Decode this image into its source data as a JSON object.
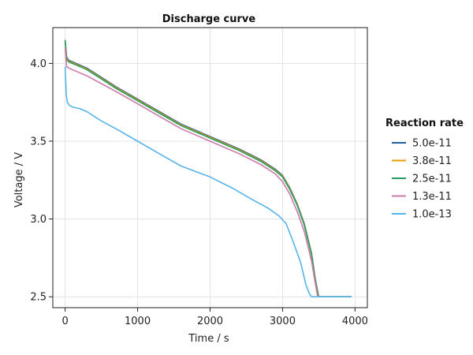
{
  "chart_data": {
    "type": "line",
    "title": "Discharge curve",
    "xlabel": "Time / s",
    "ylabel": "Voltage / V",
    "xlim": [
      -170,
      4170
    ],
    "ylim": [
      2.43,
      4.23
    ],
    "xticks": [
      0,
      1000,
      2000,
      3000,
      4000
    ],
    "yticks": [
      2.5,
      3.0,
      3.5,
      4.0
    ],
    "ytick_labels": [
      "2.5",
      "3.0",
      "3.5",
      "4.0"
    ],
    "grid": true,
    "legend": {
      "title": "Reaction rate",
      "position": "right"
    },
    "series": [
      {
        "name": "5.0e-11",
        "color": "#1f5f9e",
        "x": [
          0,
          20,
          50,
          100,
          200,
          300,
          500,
          700,
          1000,
          1300,
          1600,
          2000,
          2400,
          2700,
          2900,
          3000,
          3100,
          3200,
          3300,
          3400,
          3450,
          3490,
          3500,
          3700,
          3950
        ],
        "y": [
          4.15,
          4.04,
          4.02,
          4.01,
          3.99,
          3.97,
          3.91,
          3.85,
          3.77,
          3.69,
          3.61,
          3.53,
          3.45,
          3.38,
          3.32,
          3.28,
          3.2,
          3.1,
          2.97,
          2.78,
          2.62,
          2.52,
          2.5,
          2.5,
          2.5
        ]
      },
      {
        "name": "3.8e-11",
        "color": "#e69f00",
        "x": [
          0,
          20,
          50,
          100,
          200,
          300,
          500,
          700,
          1000,
          1300,
          1600,
          2000,
          2400,
          2700,
          2900,
          3000,
          3100,
          3200,
          3300,
          3400,
          3450,
          3490,
          3500,
          3700,
          3950
        ],
        "y": [
          4.15,
          4.03,
          4.015,
          4.005,
          3.985,
          3.965,
          3.905,
          3.845,
          3.765,
          3.685,
          3.605,
          3.525,
          3.445,
          3.375,
          3.315,
          3.275,
          3.195,
          3.095,
          2.965,
          2.775,
          2.615,
          2.515,
          2.5,
          2.5,
          2.5
        ]
      },
      {
        "name": "2.5e-11",
        "color": "#2a9d63",
        "x": [
          0,
          20,
          50,
          100,
          200,
          300,
          500,
          700,
          1000,
          1300,
          1600,
          2000,
          2400,
          2700,
          2900,
          3000,
          3100,
          3200,
          3300,
          3400,
          3450,
          3490,
          3500,
          3700,
          3950
        ],
        "y": [
          4.15,
          4.02,
          4.01,
          4.0,
          3.98,
          3.96,
          3.9,
          3.84,
          3.76,
          3.68,
          3.6,
          3.52,
          3.44,
          3.37,
          3.31,
          3.27,
          3.19,
          3.09,
          2.96,
          2.77,
          2.61,
          2.51,
          2.5,
          2.5,
          2.5
        ]
      },
      {
        "name": "1.3e-11",
        "color": "#cc79a7",
        "x": [
          0,
          20,
          50,
          100,
          200,
          300,
          500,
          700,
          1000,
          1300,
          1600,
          2000,
          2400,
          2700,
          2900,
          3000,
          3100,
          3200,
          3300,
          3400,
          3450,
          3480,
          3500,
          3700,
          3950
        ],
        "y": [
          4.1,
          3.98,
          3.97,
          3.96,
          3.94,
          3.92,
          3.87,
          3.82,
          3.74,
          3.66,
          3.58,
          3.5,
          3.42,
          3.35,
          3.29,
          3.24,
          3.16,
          3.05,
          2.92,
          2.73,
          2.59,
          2.51,
          2.5,
          2.5,
          2.5
        ]
      },
      {
        "name": "1.0e-13",
        "color": "#56b4e9",
        "x": [
          0,
          15,
          30,
          60,
          100,
          200,
          300,
          500,
          700,
          1000,
          1300,
          1600,
          2000,
          2300,
          2600,
          2800,
          2950,
          3050,
          3150,
          3250,
          3320,
          3370,
          3400,
          3500,
          3700,
          3950
        ],
        "y": [
          3.98,
          3.8,
          3.75,
          3.73,
          3.72,
          3.71,
          3.69,
          3.63,
          3.58,
          3.5,
          3.42,
          3.34,
          3.27,
          3.2,
          3.12,
          3.07,
          3.02,
          2.97,
          2.85,
          2.72,
          2.58,
          2.52,
          2.5,
          2.5,
          2.5,
          2.5
        ]
      }
    ]
  }
}
